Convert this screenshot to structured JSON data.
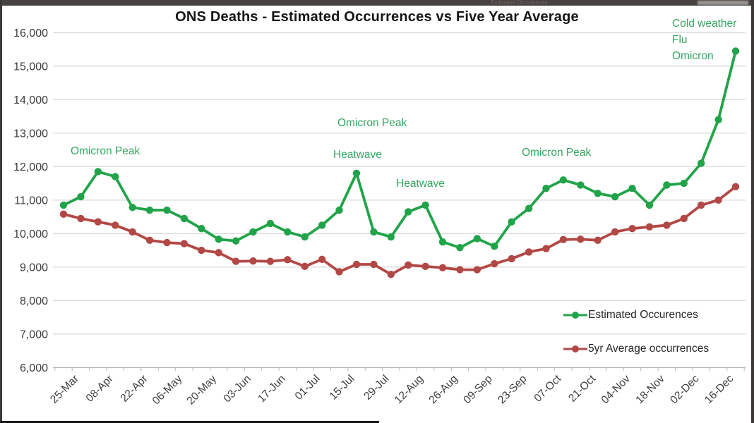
{
  "top_bar": {
    "ghost_legend_text": "Estimated Occurences"
  },
  "chart_data": {
    "type": "line",
    "title": "ONS Deaths - Estimated Occurrences vs Five Year Average",
    "xlabel": "",
    "ylabel": "",
    "ylim": [
      6000,
      16000
    ],
    "grid": true,
    "legend_position": "bottom-right",
    "x_tick_labels": [
      "25-Mar",
      "08-Apr",
      "22-Apr",
      "06-May",
      "20-May",
      "03-Jun",
      "17-Jun",
      "01-Jul",
      "15-Jul",
      "29-Jul",
      "12-Aug",
      "26-Aug",
      "09-Sep",
      "23-Sep",
      "07-Oct",
      "21-Oct",
      "04-Nov",
      "18-Nov",
      "02-Dec",
      "16-Dec"
    ],
    "data_points_per_label": 2,
    "y_tick_labels": [
      "6,000",
      "7,000",
      "8,000",
      "9,000",
      "10,000",
      "11,000",
      "12,000",
      "13,000",
      "14,000",
      "15,000",
      "16,000"
    ],
    "series": [
      {
        "name": "Estimated Occurences",
        "color": "#21A449",
        "values": [
          10850,
          11100,
          11850,
          11700,
          10780,
          10700,
          10700,
          10450,
          10150,
          9830,
          9780,
          10050,
          10300,
          10050,
          9900,
          10250,
          10700,
          11800,
          10050,
          9900,
          10650,
          10850,
          9750,
          9580,
          9850,
          9620,
          10350,
          10750,
          11350,
          11600,
          11450,
          11200,
          11100,
          11350,
          10850,
          11450,
          11500,
          12100,
          13400,
          15450
        ]
      },
      {
        "name": "5yr Average occurrences",
        "color": "#B24845",
        "values": [
          10580,
          10450,
          10350,
          10250,
          10050,
          9800,
          9730,
          9700,
          9500,
          9430,
          9170,
          9180,
          9170,
          9220,
          9020,
          9230,
          8860,
          9080,
          9080,
          8780,
          9060,
          9020,
          8980,
          8920,
          8920,
          9100,
          9250,
          9450,
          9550,
          9820,
          9830,
          9800,
          10050,
          10150,
          10200,
          10250,
          10450,
          10850,
          11000,
          11400
        ]
      }
    ],
    "annotation_color": "#35A661",
    "annotations": [
      {
        "id": "omicron-peak-april",
        "text": "Omicron Peak"
      },
      {
        "id": "omicron-peak-july",
        "text": "Omicron Peak"
      },
      {
        "id": "heatwave-july",
        "text": "Heatwave"
      },
      {
        "id": "heatwave-august",
        "text": "Heatwave"
      },
      {
        "id": "omicron-peak-october",
        "text": "Omicron Peak"
      },
      {
        "id": "cold-weather",
        "text": "Cold weather"
      },
      {
        "id": "flu",
        "text": "Flu"
      },
      {
        "id": "omicron",
        "text": "Omicron"
      }
    ]
  }
}
